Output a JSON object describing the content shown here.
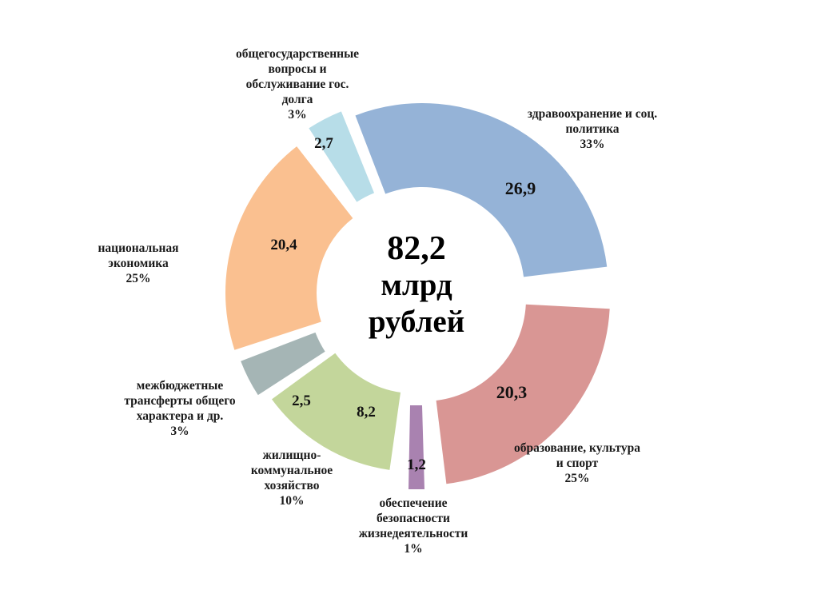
{
  "chart_data": {
    "type": "pie",
    "variant": "donut-exploded",
    "title": "",
    "center_label": {
      "value": "82,2",
      "unit_line1": "млрд",
      "unit_line2": "рублей"
    },
    "total": 82.2,
    "units": "млрд рублей",
    "slices": [
      {
        "name": "здравоохранение и соц. политика",
        "value": 26.9,
        "value_label": "26,9",
        "percent": "33%",
        "color": "#95b3d7"
      },
      {
        "name": "образование, культура и спорт",
        "value": 20.3,
        "value_label": "20,3",
        "percent": "25%",
        "color": "#d99694"
      },
      {
        "name": "обеспечение безопасности жизнедеятельности",
        "value": 1.2,
        "value_label": "1,2",
        "percent": "1%",
        "color": "#a982b0"
      },
      {
        "name": "жилищно-коммунальное хозяйство",
        "value": 8.2,
        "value_label": "8,2",
        "percent": "10%",
        "color": "#c3d69b"
      },
      {
        "name": "межбюджетные трансферты общего характера и др.",
        "value": 2.5,
        "value_label": "2,5",
        "percent": "3%",
        "color": "#a5b5b5"
      },
      {
        "name": "национальная экономика",
        "value": 20.4,
        "value_label": "20,4",
        "percent": "25%",
        "color": "#fac090"
      },
      {
        "name": "общегосударственные вопросы и обслуживание гос. долга",
        "value": 2.7,
        "value_label": "2,7",
        "percent": "3%",
        "color": "#b7dde8"
      }
    ],
    "legend": "none (data labels outside slices)"
  },
  "labels": {
    "health": {
      "l1": "здравоохранение и соц.",
      "l2": "политика",
      "pct": "33%"
    },
    "education": {
      "l1": "образование, культура",
      "l2": "и спорт",
      "pct": "25%"
    },
    "safety": {
      "l1": "обеспечение",
      "l2": "безопасности",
      "l3": "жизнедеятельности",
      "pct": "1%"
    },
    "housing": {
      "l1": "жилищно-",
      "l2": "коммунальное",
      "l3": "хозяйство",
      "pct": "10%"
    },
    "transfers": {
      "l1": "межбюджетные",
      "l2": "трансферты общего",
      "l3": "характера и др.",
      "pct": "3%"
    },
    "economy": {
      "l1": "национальная",
      "l2": "экономика",
      "pct": "25%"
    },
    "general": {
      "l1": "общегосударственные",
      "l2": "вопросы и",
      "l3": "обслуживание гос.",
      "l4": "долга",
      "pct": "3%"
    }
  }
}
